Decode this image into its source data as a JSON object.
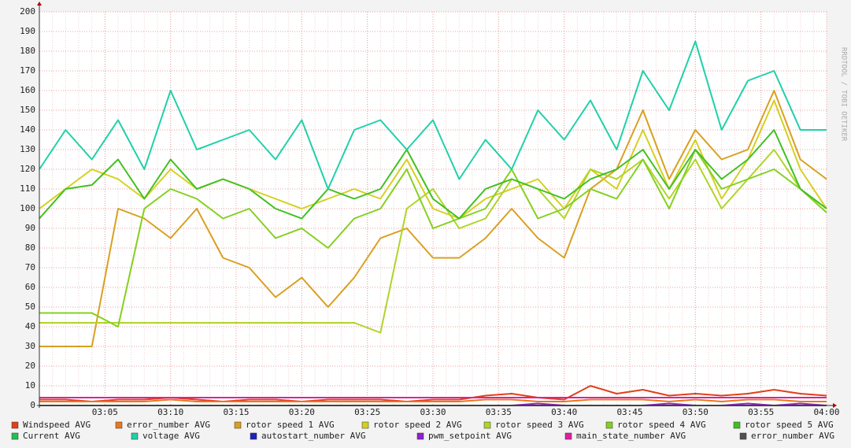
{
  "chart_data": {
    "type": "line",
    "watermark": "RRDTOOL / TOBI OETIKER",
    "x": [
      "03:00",
      "03:02",
      "03:04",
      "03:06",
      "03:08",
      "03:10",
      "03:12",
      "03:14",
      "03:16",
      "03:18",
      "03:20",
      "03:22",
      "03:24",
      "03:26",
      "03:28",
      "03:30",
      "03:32",
      "03:34",
      "03:36",
      "03:38",
      "03:40",
      "03:42",
      "03:44",
      "03:46",
      "03:48",
      "03:50",
      "03:52",
      "03:54",
      "03:56",
      "03:58",
      "04:00"
    ],
    "xlim": [
      "03:00",
      "04:00"
    ],
    "xticks": [
      "03:05",
      "03:10",
      "03:15",
      "03:20",
      "03:25",
      "03:30",
      "03:35",
      "03:40",
      "03:45",
      "03:50",
      "03:55",
      "04:00"
    ],
    "ylim": [
      0,
      200
    ],
    "yticks": [
      0,
      10,
      20,
      30,
      40,
      50,
      60,
      70,
      80,
      90,
      100,
      110,
      120,
      130,
      140,
      150,
      160,
      170,
      180,
      190,
      200
    ],
    "grid": true,
    "series": [
      {
        "name": "Windspeed AVG",
        "color": "#e0401a",
        "values": [
          3,
          3,
          2,
          3,
          3,
          4,
          3,
          2,
          3,
          3,
          2,
          3,
          3,
          3,
          2,
          3,
          3,
          5,
          6,
          4,
          3,
          10,
          6,
          8,
          5,
          6,
          5,
          6,
          8,
          6,
          5
        ]
      },
      {
        "name": "error_number AVG",
        "color": "#e8781e",
        "values": [
          2,
          2,
          2,
          2,
          2,
          3,
          2,
          2,
          2,
          2,
          2,
          2,
          2,
          2,
          2,
          2,
          2,
          3,
          3,
          2,
          2,
          3,
          3,
          3,
          2,
          3,
          2,
          3,
          3,
          2,
          2
        ]
      },
      {
        "name": "rotor speed 1 AVG",
        "color": "#d8a020",
        "values": [
          30,
          30,
          30,
          100,
          95,
          85,
          100,
          75,
          70,
          55,
          65,
          50,
          65,
          85,
          90,
          75,
          75,
          85,
          100,
          85,
          75,
          110,
          120,
          150,
          115,
          140,
          125,
          130,
          160,
          125,
          115
        ]
      },
      {
        "name": "rotor speed 2 AVG",
        "color": "#d4d020",
        "values": [
          100,
          110,
          120,
          115,
          105,
          120,
          110,
          115,
          110,
          105,
          100,
          105,
          110,
          105,
          125,
          100,
          95,
          105,
          110,
          115,
          100,
          120,
          110,
          140,
          110,
          135,
          105,
          125,
          155,
          120,
          100
        ]
      },
      {
        "name": "rotor speed 3 AVG",
        "color": "#b0d428",
        "values": [
          42,
          42,
          42,
          42,
          42,
          42,
          42,
          42,
          42,
          42,
          42,
          42,
          42,
          37,
          100,
          110,
          90,
          95,
          115,
          110,
          95,
          120,
          115,
          125,
          105,
          125,
          100,
          115,
          130,
          110,
          100
        ]
      },
      {
        "name": "rotor speed 4 AVG",
        "color": "#84d020",
        "values": [
          47,
          47,
          47,
          40,
          100,
          110,
          105,
          95,
          100,
          85,
          90,
          80,
          95,
          100,
          120,
          90,
          95,
          100,
          120,
          95,
          100,
          110,
          105,
          125,
          100,
          130,
          110,
          115,
          120,
          110,
          98
        ]
      },
      {
        "name": "rotor speed 5 AVG",
        "color": "#40c020",
        "values": [
          95,
          110,
          112,
          125,
          105,
          125,
          110,
          115,
          110,
          100,
          95,
          110,
          105,
          110,
          130,
          105,
          95,
          110,
          115,
          110,
          105,
          115,
          120,
          130,
          110,
          130,
          115,
          125,
          140,
          110,
          100
        ]
      },
      {
        "name": "Current AVG",
        "color": "#20c050",
        "values": [
          0,
          0,
          0,
          0,
          0,
          0,
          0,
          0,
          0,
          0,
          0,
          0,
          0,
          0,
          0,
          0,
          0,
          0,
          0,
          0,
          0,
          0,
          0,
          0,
          0,
          0,
          0,
          0,
          0,
          0,
          0
        ]
      },
      {
        "name": "voltage AVG",
        "color": "#20d0a8",
        "values": [
          120,
          140,
          125,
          145,
          120,
          160,
          130,
          135,
          140,
          125,
          145,
          110,
          140,
          145,
          130,
          145,
          115,
          135,
          120,
          150,
          135,
          155,
          130,
          170,
          150,
          185,
          140,
          165,
          170,
          140,
          140
        ]
      },
      {
        "name": "autostart_number AVG",
        "color": "#2020c0",
        "values": [
          0,
          0,
          0,
          0,
          0,
          0,
          0,
          0,
          0,
          0,
          0,
          0,
          0,
          0,
          0,
          0,
          0,
          0,
          0,
          0,
          0,
          0,
          0,
          0,
          0,
          0,
          0,
          0,
          0,
          0,
          0
        ]
      },
      {
        "name": "pwm_setpoint AVG",
        "color": "#9020d0",
        "values": [
          0,
          0,
          0,
          0,
          0,
          0,
          0,
          0,
          0,
          0,
          0,
          0,
          0,
          0,
          0,
          0,
          0,
          0,
          0,
          1,
          0,
          0,
          0,
          0,
          1,
          0,
          0,
          1,
          0,
          1,
          0
        ]
      },
      {
        "name": "main_state_number AVG",
        "color": "#e020a0",
        "values": [
          4,
          4,
          4,
          4,
          4,
          4,
          4,
          4,
          4,
          4,
          4,
          4,
          4,
          4,
          4,
          4,
          4,
          4,
          4,
          4,
          4,
          4,
          4,
          4,
          4,
          4,
          4,
          4,
          4,
          4,
          4
        ]
      },
      {
        "name": "error_number AVG",
        "color": "#505050",
        "values": [
          0,
          0,
          0,
          0,
          0,
          0,
          0,
          0,
          0,
          0,
          0,
          0,
          0,
          0,
          0,
          0,
          0,
          0,
          0,
          0,
          0,
          0,
          0,
          0,
          0,
          0,
          0,
          0,
          0,
          0,
          0
        ]
      }
    ]
  }
}
